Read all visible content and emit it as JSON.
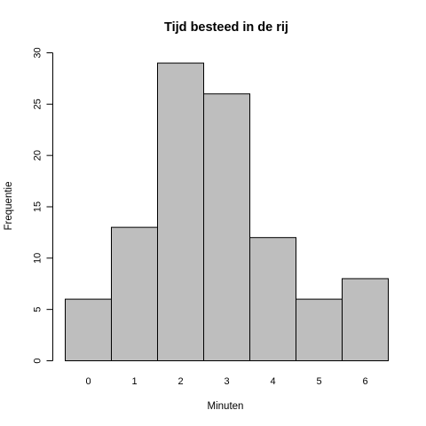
{
  "chart_data": {
    "type": "bar",
    "title": "Tijd besteed in de rij",
    "xlabel": "Minuten",
    "ylabel": "Frequentie",
    "categories": [
      "0",
      "1",
      "2",
      "3",
      "4",
      "5",
      "6"
    ],
    "values": [
      6,
      13,
      29,
      26,
      12,
      6,
      8
    ],
    "ylim": [
      0,
      30
    ],
    "yticks": [
      "0",
      "5",
      "10",
      "15",
      "20",
      "25",
      "30"
    ],
    "grid": false,
    "bar_color": "#bebebe",
    "edge_color": "#000000"
  }
}
